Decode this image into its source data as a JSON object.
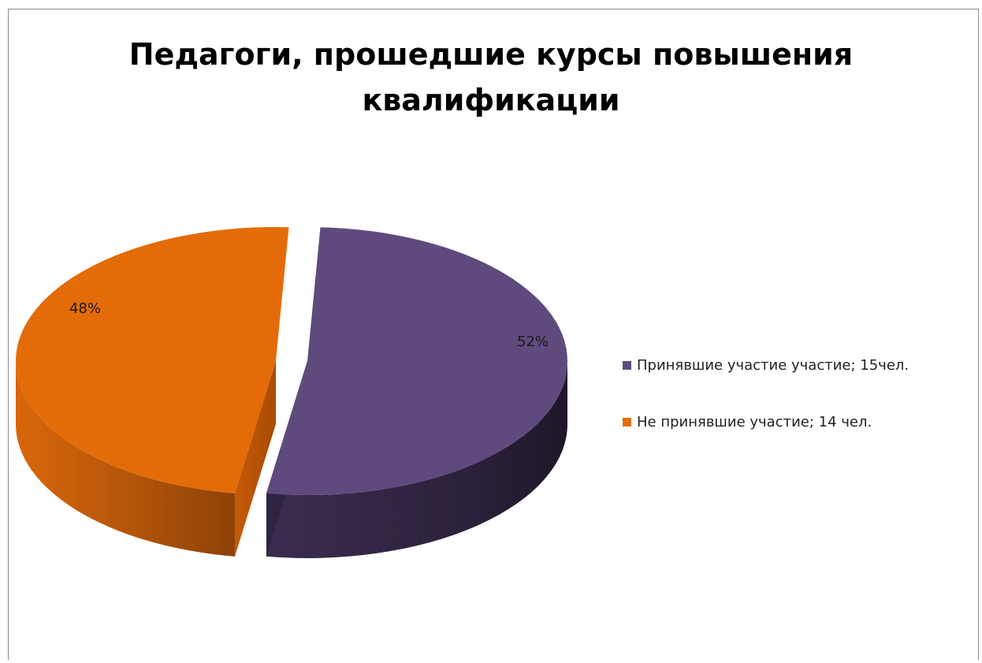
{
  "chart_data": {
    "type": "pie",
    "title_lines": [
      "Педагоги, прошедшие курсы повышения",
      "квалификации"
    ],
    "three_d": true,
    "exploded": true,
    "legend_position": "right",
    "slices": [
      {
        "legend_label": "Принявшие участие участие; 15чел.",
        "value": 15,
        "percent_label": "52%",
        "color": "#5f4a7e",
        "side_color": "#2f243f"
      },
      {
        "legend_label": "Не принявшие участие; 14 чел.",
        "value": 14,
        "percent_label": "48%",
        "color": "#e36c09",
        "side_color": "#a14c06"
      }
    ]
  }
}
